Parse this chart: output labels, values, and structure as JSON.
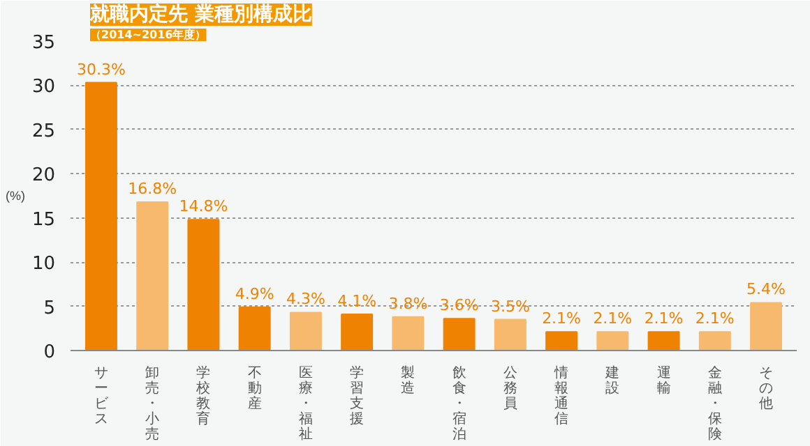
{
  "chart_data": {
    "type": "bar",
    "title": "就職内定先 業種別構成比",
    "subtitle": "（2014~2016年度）",
    "ylabel": "(%)",
    "categories": [
      "サービス",
      "卸売・小売",
      "学校教育",
      "不動産",
      "医療・福祉",
      "学習支援",
      "製造",
      "飲食・宿泊",
      "公務員",
      "情報通信",
      "建設",
      "運輸",
      "金融・保険",
      "その他"
    ],
    "values": [
      30.3,
      16.8,
      14.8,
      4.9,
      4.3,
      4.1,
      3.8,
      3.6,
      3.5,
      2.1,
      2.1,
      2.1,
      2.1,
      5.4
    ],
    "colors": [
      "#ef8200",
      "#f7b96e",
      "#ef8200",
      "#ef8200",
      "#f7b96e",
      "#ef8200",
      "#f7b96e",
      "#ef8200",
      "#f7b96e",
      "#ef8200",
      "#f7b96e",
      "#ef8200",
      "#f7b96e",
      "#f7b96e"
    ],
    "value_labels": [
      "30.3%",
      "16.8%",
      "14.8%",
      "4.9%",
      "4.3%",
      "4.1%",
      "3.8%",
      "3.6%",
      "3.5%",
      "2.1%",
      "2.1%",
      "2.1%",
      "2.1%",
      "5.4%"
    ],
    "ylim": [
      0,
      35
    ],
    "yticks": [
      0,
      5,
      10,
      15,
      20,
      25,
      30,
      35
    ],
    "grid": "y"
  }
}
